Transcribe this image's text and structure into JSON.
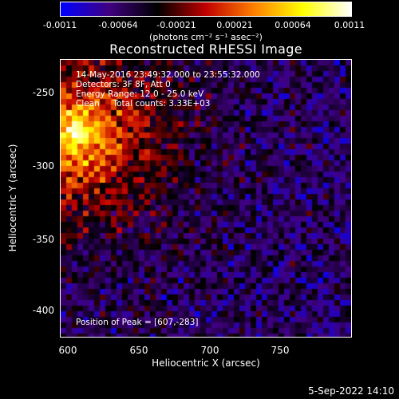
{
  "colorbar": {
    "ticks": [
      "-0.0011",
      "-0.00064",
      "-0.00021",
      "0.00021",
      "0.00064",
      "0.0011"
    ],
    "units_label": "(photons cm⁻² s⁻¹ asec⁻²)"
  },
  "title": "Reconstructed RHESSI Image",
  "overlay": {
    "time_range": "14-May-2016 23:49:32.000 to 23:55:32.000",
    "detectors": "Detectors: 3F 8F, Att 0",
    "energy_range": "Energy Range: 12.0 - 25.0 keV",
    "method": "Clean     Total counts: 3.33E+03",
    "peak": "Position of Peak = [607,-283]"
  },
  "chart_data": {
    "type": "heatmap",
    "title": "Reconstructed RHESSI Image",
    "xlabel": "Heliocentric X (arcsec)",
    "ylabel": "Heliocentric Y (arcsec)",
    "xlim": [
      597,
      790
    ],
    "ylim": [
      -421,
      -232
    ],
    "x_ticks": [
      "600",
      "650",
      "700",
      "750"
    ],
    "y_ticks": [
      "-250",
      "-300",
      "-350",
      "-400"
    ],
    "color_range": [
      -0.0011,
      0.0011
    ],
    "colormap": [
      "#0000ff",
      "#400080",
      "#000000",
      "#c00000",
      "#ff8000",
      "#ffff00",
      "#ffffff"
    ],
    "peak_position": [
      607,
      -283
    ]
  },
  "footer": {
    "date": "5-Sep-2022 14:10"
  }
}
